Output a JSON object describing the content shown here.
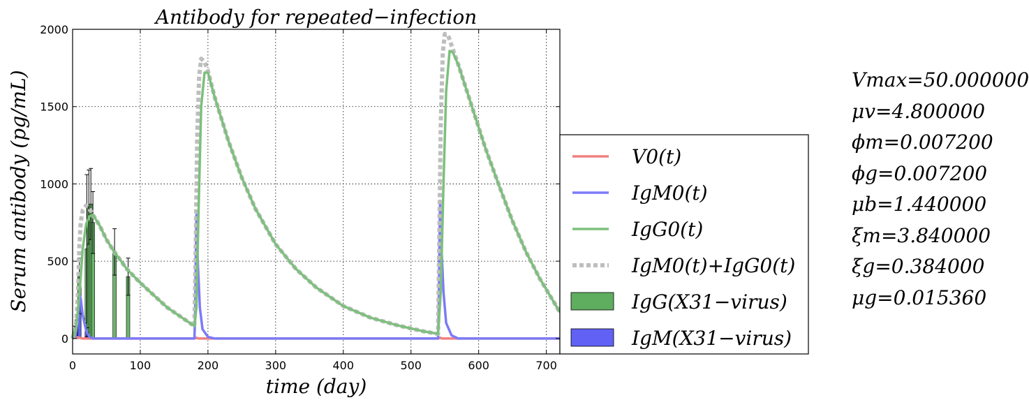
{
  "chart_data": {
    "type": "line",
    "title": "Antibody for repeated−infection",
    "xlabel": "time (day)",
    "ylabel": "Serum antibody (pg/mL)",
    "xlim": [
      0,
      720
    ],
    "ylim": [
      -100,
      2000
    ],
    "xticks": [
      "0",
      "100",
      "200",
      "300",
      "400",
      "500",
      "600",
      "700"
    ],
    "yticks": [
      "0",
      "500",
      "1000",
      "1500",
      "2000"
    ],
    "grid": true,
    "legend_position": "right",
    "colors": {
      "v0": "#f08080",
      "igm": "#7b7bf7",
      "igg": "#7dbf7d",
      "total": "#bebebe",
      "igg_bar": "#5fad5f",
      "igm_bar": "#6161f5"
    },
    "series": [
      {
        "name": "V0(t)",
        "key": "v0",
        "style": "solid",
        "points": [
          [
            0,
            0
          ],
          [
            5,
            10
          ],
          [
            10,
            5
          ],
          [
            15,
            0
          ],
          [
            180,
            0
          ],
          [
            183,
            5
          ],
          [
            186,
            0
          ],
          [
            540,
            0
          ],
          [
            543,
            5
          ],
          [
            546,
            0
          ],
          [
            720,
            0
          ]
        ]
      },
      {
        "name": "IgM0(t)",
        "key": "igm",
        "style": "solid",
        "points": [
          [
            0,
            0
          ],
          [
            4,
            10
          ],
          [
            8,
            150
          ],
          [
            10,
            290
          ],
          [
            12,
            260
          ],
          [
            15,
            150
          ],
          [
            20,
            50
          ],
          [
            25,
            10
          ],
          [
            30,
            0
          ],
          [
            180,
            0
          ],
          [
            181,
            150
          ],
          [
            182,
            500
          ],
          [
            183,
            800
          ],
          [
            185,
            500
          ],
          [
            188,
            200
          ],
          [
            192,
            60
          ],
          [
            200,
            10
          ],
          [
            210,
            0
          ],
          [
            540,
            0
          ],
          [
            541,
            200
          ],
          [
            542,
            600
          ],
          [
            543,
            890
          ],
          [
            545,
            600
          ],
          [
            548,
            300
          ],
          [
            552,
            100
          ],
          [
            560,
            20
          ],
          [
            570,
            0
          ],
          [
            720,
            0
          ]
        ]
      },
      {
        "name": "IgG0(t)",
        "key": "igg",
        "style": "solid",
        "points": [
          [
            0,
            0
          ],
          [
            5,
            60
          ],
          [
            10,
            280
          ],
          [
            15,
            580
          ],
          [
            20,
            740
          ],
          [
            25,
            790
          ],
          [
            30,
            800
          ],
          [
            40,
            730
          ],
          [
            50,
            640
          ],
          [
            60,
            570
          ],
          [
            80,
            450
          ],
          [
            100,
            360
          ],
          [
            120,
            280
          ],
          [
            140,
            200
          ],
          [
            160,
            140
          ],
          [
            180,
            80
          ],
          [
            183,
            200
          ],
          [
            186,
            800
          ],
          [
            190,
            1500
          ],
          [
            195,
            1720
          ],
          [
            200,
            1720
          ],
          [
            210,
            1560
          ],
          [
            230,
            1280
          ],
          [
            250,
            1040
          ],
          [
            270,
            840
          ],
          [
            300,
            610
          ],
          [
            330,
            450
          ],
          [
            360,
            330
          ],
          [
            400,
            210
          ],
          [
            440,
            135
          ],
          [
            480,
            85
          ],
          [
            520,
            45
          ],
          [
            540,
            30
          ],
          [
            544,
            300
          ],
          [
            548,
            1000
          ],
          [
            552,
            1600
          ],
          [
            557,
            1860
          ],
          [
            562,
            1850
          ],
          [
            570,
            1770
          ],
          [
            590,
            1500
          ],
          [
            610,
            1230
          ],
          [
            630,
            990
          ],
          [
            650,
            760
          ],
          [
            670,
            560
          ],
          [
            690,
            390
          ],
          [
            720,
            170
          ]
        ]
      },
      {
        "name": "IgM0(t)+IgG0(t)",
        "key": "total",
        "style": "dotted",
        "points": [
          [
            0,
            0
          ],
          [
            5,
            80
          ],
          [
            8,
            300
          ],
          [
            10,
            600
          ],
          [
            12,
            750
          ],
          [
            15,
            830
          ],
          [
            20,
            860
          ],
          [
            25,
            840
          ],
          [
            30,
            800
          ],
          [
            40,
            730
          ],
          [
            50,
            640
          ],
          [
            60,
            570
          ],
          [
            80,
            450
          ],
          [
            100,
            360
          ],
          [
            120,
            280
          ],
          [
            140,
            200
          ],
          [
            160,
            140
          ],
          [
            180,
            80
          ],
          [
            182,
            600
          ],
          [
            184,
            1300
          ],
          [
            187,
            1700
          ],
          [
            190,
            1810
          ],
          [
            195,
            1790
          ],
          [
            200,
            1730
          ],
          [
            210,
            1560
          ],
          [
            230,
            1280
          ],
          [
            250,
            1040
          ],
          [
            270,
            840
          ],
          [
            300,
            610
          ],
          [
            330,
            450
          ],
          [
            360,
            330
          ],
          [
            400,
            210
          ],
          [
            440,
            135
          ],
          [
            480,
            85
          ],
          [
            520,
            45
          ],
          [
            540,
            30
          ],
          [
            542,
            700
          ],
          [
            544,
            1400
          ],
          [
            547,
            1850
          ],
          [
            550,
            1970
          ],
          [
            555,
            1960
          ],
          [
            562,
            1870
          ],
          [
            570,
            1770
          ],
          [
            590,
            1500
          ],
          [
            610,
            1230
          ],
          [
            630,
            990
          ],
          [
            650,
            760
          ],
          [
            670,
            560
          ],
          [
            690,
            390
          ],
          [
            720,
            170
          ]
        ]
      }
    ],
    "bars": {
      "IgG(X31−virus)": [
        {
          "x": 3,
          "y": 50,
          "err": 30
        },
        {
          "x": 6,
          "y": 80,
          "err": 40
        },
        {
          "x": 10,
          "y": 400,
          "err": 120
        },
        {
          "x": 21,
          "y": 580,
          "err": 480
        },
        {
          "x": 24,
          "y": 850,
          "err": 240
        },
        {
          "x": 27,
          "y": 870,
          "err": 230
        },
        {
          "x": 30,
          "y": 750,
          "err": 200
        },
        {
          "x": 62,
          "y": 560,
          "err": 150
        },
        {
          "x": 82,
          "y": 400,
          "err": 120
        }
      ],
      "IgM(X31−virus)": [
        {
          "x": 3,
          "y": 20,
          "err": 10
        },
        {
          "x": 6,
          "y": 35,
          "err": 15
        },
        {
          "x": 10,
          "y": 240,
          "err": 80
        },
        {
          "x": 21,
          "y": 40,
          "err": 30
        }
      ]
    }
  },
  "legend": [
    {
      "label": "V0(t)",
      "key": "v0",
      "kind": "line"
    },
    {
      "label": "IgM0(t)",
      "key": "igm",
      "kind": "line"
    },
    {
      "label": "IgG0(t)",
      "key": "igg",
      "kind": "line"
    },
    {
      "label": "IgM0(t)+IgG0(t)",
      "key": "total",
      "kind": "dotted"
    },
    {
      "label": "IgG(X31−virus)",
      "key": "igg_bar",
      "kind": "patch"
    },
    {
      "label": "IgM(X31−virus)",
      "key": "igm_bar",
      "kind": "patch"
    }
  ],
  "parameters": [
    "Vmax=50.000000",
    "μv=4.800000",
    "ϕm=0.007200",
    "ϕg=0.007200",
    "μb=1.440000",
    "ξm=3.840000",
    "ξg=0.384000",
    "μg=0.015360"
  ]
}
